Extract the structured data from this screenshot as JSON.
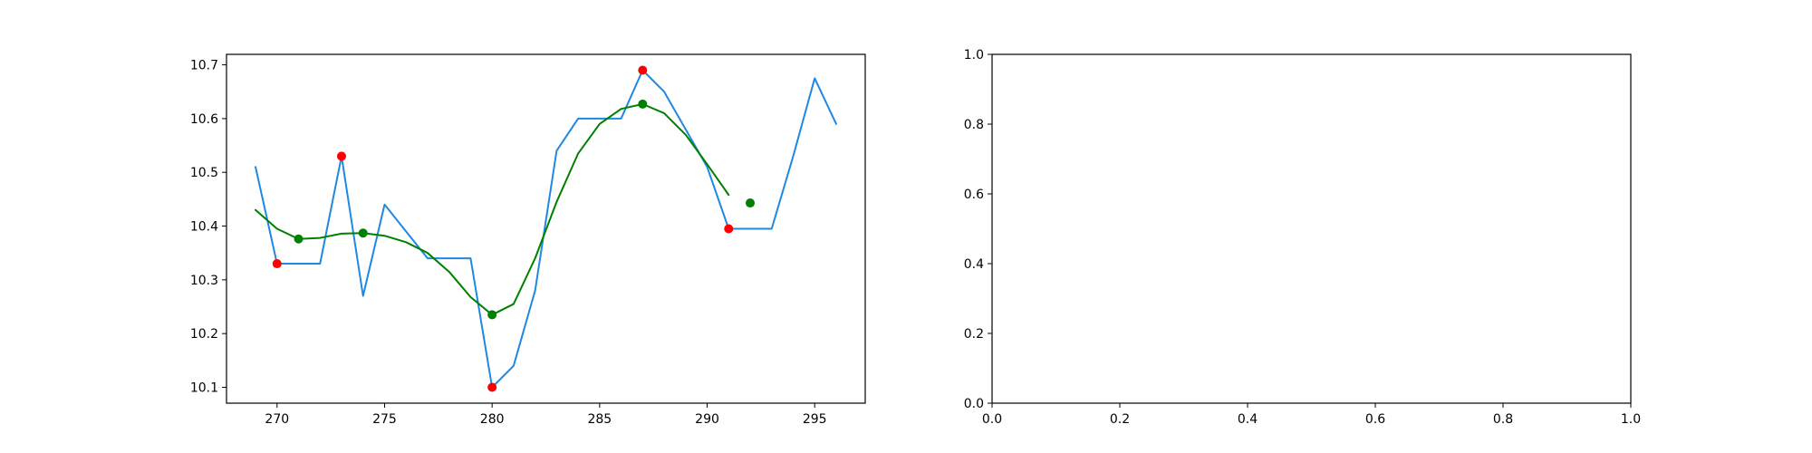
{
  "chart_data": [
    {
      "type": "line",
      "title": "",
      "xlabel": "",
      "ylabel": "",
      "xlim": [
        267.65,
        297.35
      ],
      "ylim": [
        10.0705,
        10.7195
      ],
      "x_ticks": [
        270,
        275,
        280,
        285,
        290,
        295
      ],
      "y_ticks": [
        10.1,
        10.2,
        10.3,
        10.4,
        10.5,
        10.6,
        10.7
      ],
      "x_tick_labels": [
        "270",
        "275",
        "280",
        "285",
        "290",
        "295"
      ],
      "y_tick_labels": [
        "10.1",
        "10.2",
        "10.3",
        "10.4",
        "10.5",
        "10.6",
        "10.7"
      ],
      "grid": false,
      "legend": "none",
      "series": [
        {
          "kind": "line",
          "color": "#1e88e5",
          "x": [
            269,
            270,
            271,
            272,
            273,
            274,
            275,
            276,
            277,
            278,
            279,
            280,
            281,
            282,
            283,
            284,
            285,
            286,
            287,
            288,
            289,
            290,
            291,
            292,
            293,
            294,
            295,
            296
          ],
          "y": [
            10.51,
            10.33,
            10.33,
            10.33,
            10.53,
            10.27,
            10.44,
            10.39,
            10.34,
            10.34,
            10.34,
            10.1,
            10.14,
            10.28,
            10.54,
            10.6,
            10.6,
            10.6,
            10.69,
            10.65,
            10.58,
            10.51,
            10.395,
            10.395,
            10.395,
            10.53,
            10.675,
            10.59
          ]
        },
        {
          "kind": "line",
          "color": "#008000",
          "x": [
            269,
            270,
            271,
            272,
            273,
            274,
            275,
            276,
            277,
            278,
            279,
            280,
            281,
            282,
            283,
            284,
            285,
            286,
            287,
            288,
            289,
            290,
            291
          ],
          "y": [
            10.43,
            10.395,
            10.376,
            10.378,
            10.386,
            10.387,
            10.382,
            10.37,
            10.35,
            10.315,
            10.268,
            10.235,
            10.255,
            10.34,
            10.445,
            10.535,
            10.59,
            10.618,
            10.627,
            10.61,
            10.57,
            10.515,
            10.458
          ]
        },
        {
          "kind": "scatter",
          "color": "#ff0000",
          "x": [
            270,
            273,
            280,
            287,
            291
          ],
          "y": [
            10.33,
            10.53,
            10.1,
            10.69,
            10.395
          ]
        },
        {
          "kind": "scatter",
          "color": "#008000",
          "x": [
            271,
            274,
            280,
            287,
            292
          ],
          "y": [
            10.376,
            10.387,
            10.235,
            10.627,
            10.443
          ]
        }
      ]
    },
    {
      "type": "line",
      "title": "",
      "xlabel": "",
      "ylabel": "",
      "xlim": [
        0,
        1
      ],
      "ylim": [
        0,
        1
      ],
      "x_ticks": [
        0,
        0.2,
        0.4,
        0.6,
        0.8,
        1.0
      ],
      "y_ticks": [
        0,
        0.2,
        0.4,
        0.6,
        0.8,
        1.0
      ],
      "x_tick_labels": [
        "0.0",
        "0.2",
        "0.4",
        "0.6",
        "0.8",
        "1.0"
      ],
      "y_tick_labels": [
        "0.0",
        "0.2",
        "0.4",
        "0.6",
        "0.8",
        "1.0"
      ],
      "grid": false,
      "legend": "none",
      "series": []
    }
  ]
}
